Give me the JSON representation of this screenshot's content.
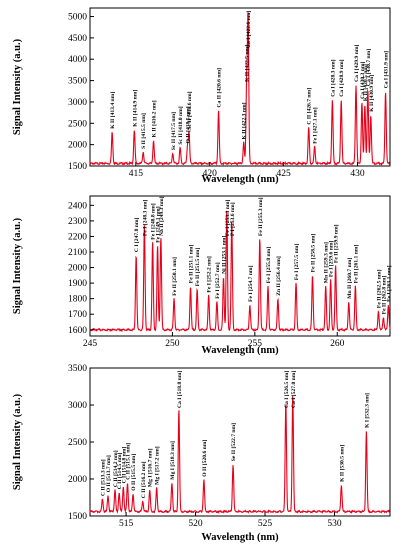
{
  "chart_data": [
    {
      "type": "line",
      "xlabel": "Wavelength (nm)",
      "ylabel": "Signal Intensity (a.u.)",
      "xlim": [
        411.9,
        432.2
      ],
      "ylim": [
        1500,
        5200
      ],
      "xticks": [
        415,
        420,
        425,
        430
      ],
      "yticks": [
        1500,
        2000,
        2500,
        3000,
        3500,
        4000,
        4500,
        5000
      ],
      "color": "#e8001a",
      "baseline": 1560,
      "peaks": [
        {
          "x": 413.4,
          "y": 2300,
          "label": "K II [413.4 nm]"
        },
        {
          "x": 414.9,
          "y": 2350,
          "label": "K II [414.9 nm]"
        },
        {
          "x": 415.5,
          "y": 1830,
          "label": "S II [415.5 nm]"
        },
        {
          "x": 416.2,
          "y": 2100,
          "label": "K II [416.2 nm]"
        },
        {
          "x": 417.5,
          "y": 1800,
          "label": "Sc II [417.5 nm]"
        },
        {
          "x": 418.0,
          "y": 1930,
          "label": "Sc II [418.0 nm]"
        },
        {
          "x": 418.5,
          "y": 1960,
          "label": "O II [418.5 nm]"
        },
        {
          "x": 418.6,
          "y": 2280,
          "label": "Sc II [418.6 nm]"
        },
        {
          "x": 420.6,
          "y": 2800,
          "label": "Ca II [420.6 nm]"
        },
        {
          "x": 422.3,
          "y": 2050,
          "label": "K II [422.3 nm]"
        },
        {
          "x": 422.5,
          "y": 3400,
          "label": "K II [422.5 nm]"
        },
        {
          "x": 422.6,
          "y": 4950,
          "label": "Ca I [422.6 nm]"
        },
        {
          "x": 426.7,
          "y": 2400,
          "label": "C II [426.7 nm]"
        },
        {
          "x": 427.1,
          "y": 1950,
          "label": "Fe I [427.1 nm]"
        },
        {
          "x": 428.3,
          "y": 3050,
          "label": "Ca I [428.3 nm]"
        },
        {
          "x": 428.9,
          "y": 3050,
          "label": "Ca I [428.9 nm]"
        },
        {
          "x": 429.9,
          "y": 3400,
          "label": "Ca I [429.9 nm]"
        },
        {
          "x": 430.3,
          "y": 3000,
          "label": "Ca I [430.3 nm]"
        },
        {
          "x": 430.5,
          "y": 2950,
          "label": "K II [430.5 nm]"
        },
        {
          "x": 430.7,
          "y": 3300,
          "label": "Ca I [430.7 nm]"
        },
        {
          "x": 430.9,
          "y": 2700,
          "label": "K II [430.9 nm]"
        },
        {
          "x": 431.9,
          "y": 3250,
          "label": "Ca I [431.9 nm]"
        }
      ]
    },
    {
      "type": "line",
      "xlabel": "Wavelength (nm)",
      "ylabel": "Signal Intensity (a.u.)",
      "xlim": [
        245,
        263.2
      ],
      "ylim": [
        1560,
        2460
      ],
      "xticks": [
        245,
        250,
        255,
        260
      ],
      "yticks": [
        1600,
        1700,
        1800,
        1900,
        2000,
        2100,
        2200,
        2300,
        2400
      ],
      "color": "#e8001a",
      "baseline": 1600,
      "peaks": [
        {
          "x": 247.8,
          "y": 2080,
          "label": "C I [247.8 nm]"
        },
        {
          "x": 248.3,
          "y": 2270,
          "label": "Fe I [248.3 nm]"
        },
        {
          "x": 248.8,
          "y": 2160,
          "label": "Fe I [248.8 nm]"
        },
        {
          "x": 249.1,
          "y": 2140,
          "label": "Fe I [249.1 nm]"
        },
        {
          "x": 249.3,
          "y": 2200,
          "label": "Na II [249.3 nm]"
        },
        {
          "x": 250.1,
          "y": 1800,
          "label": "Fe II [250.1 nm]"
        },
        {
          "x": 251.1,
          "y": 1880,
          "label": "Fe II [251.1 nm]"
        },
        {
          "x": 251.5,
          "y": 1860,
          "label": "Fe II [251.5 nm]"
        },
        {
          "x": 252.2,
          "y": 1820,
          "label": "Fe I [252.2 nm]"
        },
        {
          "x": 252.7,
          "y": 1780,
          "label": "Fe I [252.7 nm]"
        },
        {
          "x": 253.1,
          "y": 1940,
          "label": "Ni II [253.1 nm]"
        },
        {
          "x": 253.3,
          "y": 2380,
          "label": "Fe I [253.3 nm]"
        },
        {
          "x": 253.6,
          "y": 2300,
          "label": "P I [253.6 nm]"
        },
        {
          "x": 254.7,
          "y": 1760,
          "label": "Fe I [254.7 nm]"
        },
        {
          "x": 255.3,
          "y": 2190,
          "label": "Fe II [255.3 nm]"
        },
        {
          "x": 255.8,
          "y": 1880,
          "label": "Fe I [255.8 nm]"
        },
        {
          "x": 256.4,
          "y": 1800,
          "label": "Zn II [256.4 nm]"
        },
        {
          "x": 257.5,
          "y": 1900,
          "label": "Fe I [257.5 nm]"
        },
        {
          "x": 258.5,
          "y": 1950,
          "label": "Fe II [258.5 nm]"
        },
        {
          "x": 259.3,
          "y": 1880,
          "label": "Mn II [259.3 nm]"
        },
        {
          "x": 259.6,
          "y": 1920,
          "label": "Fe I [259.6 nm]"
        },
        {
          "x": 259.9,
          "y": 2010,
          "label": "Fe II [259.9 nm]"
        },
        {
          "x": 260.7,
          "y": 1780,
          "label": "Mn II [260.7 nm]"
        },
        {
          "x": 261.1,
          "y": 1880,
          "label": "Fe II [261.1 nm]"
        },
        {
          "x": 262.5,
          "y": 1720,
          "label": "Fe II [262.5 nm]"
        },
        {
          "x": 262.8,
          "y": 1680,
          "label": "Fe II [262.8 nm]"
        },
        {
          "x": 263.1,
          "y": 1760,
          "label": "Fe I [263.1 nm]"
        }
      ]
    },
    {
      "type": "line",
      "xlabel": "Wavelength (nm)",
      "ylabel": "Signal Intensity (a.u.)",
      "xlim": [
        512.4,
        534
      ],
      "ylim": [
        1500,
        3500
      ],
      "xticks": [
        515,
        520,
        525,
        530
      ],
      "yticks": [
        1500,
        2000,
        2500,
        3000,
        3500
      ],
      "color": "#e8001a",
      "baseline": 1560,
      "peaks": [
        {
          "x": 513.3,
          "y": 1730,
          "label": "C II [513.3 nm]"
        },
        {
          "x": 513.7,
          "y": 1780,
          "label": "O II [513.7 nm]"
        },
        {
          "x": 514.2,
          "y": 1850,
          "label": "C II [514.2 nm]"
        },
        {
          "x": 514.5,
          "y": 1820,
          "label": "C II [514.5 nm]"
        },
        {
          "x": 514.8,
          "y": 1900,
          "label": "C II [514.8 nm]"
        },
        {
          "x": 515.1,
          "y": 1950,
          "label": "C II [515.1 nm]"
        },
        {
          "x": 515.5,
          "y": 1800,
          "label": "O II [515.5 nm]"
        },
        {
          "x": 516.2,
          "y": 1700,
          "label": "C II [516.2 nm]"
        },
        {
          "x": 516.7,
          "y": 1850,
          "label": "Mg I [516.7 nm]"
        },
        {
          "x": 517.2,
          "y": 1880,
          "label": "Mg I [517.2 nm]"
        },
        {
          "x": 518.3,
          "y": 1950,
          "label": "Mg I [518.3 nm]"
        },
        {
          "x": 518.8,
          "y": 2950,
          "label": "Ca I [518.8 nm]"
        },
        {
          "x": 520.6,
          "y": 1990,
          "label": "O II [520.6 nm]"
        },
        {
          "x": 522.7,
          "y": 2200,
          "label": "Se II [522.7 nm]"
        },
        {
          "x": 526.5,
          "y": 3050,
          "label": "Ca I [526.5 nm]"
        },
        {
          "x": 527.0,
          "y": 3150,
          "label": "Ca I [527.0 nm]"
        },
        {
          "x": 530.5,
          "y": 1920,
          "label": "K II [530.5 nm]"
        },
        {
          "x": 532.3,
          "y": 2650,
          "label": "K I [532.3 nm]"
        }
      ]
    }
  ]
}
